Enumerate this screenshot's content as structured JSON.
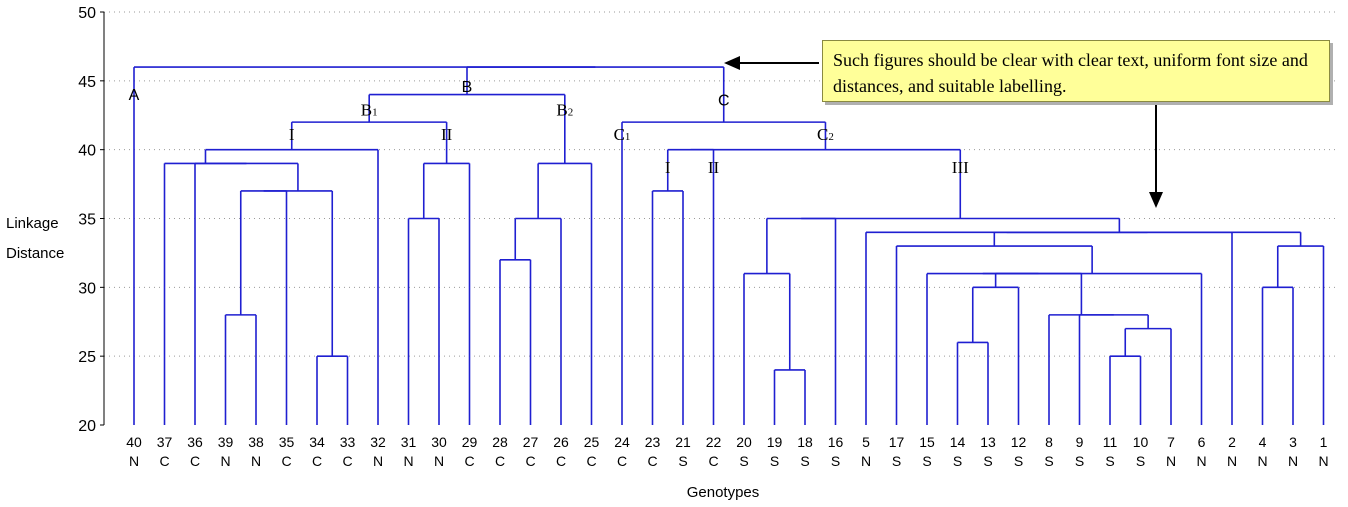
{
  "chart_data": {
    "type": "dendrogram",
    "title": "",
    "xlabel": "Genotypes",
    "ylabel_lines": [
      "Linkage",
      "Distance"
    ],
    "ylim": [
      20,
      50
    ],
    "yticks": [
      20,
      25,
      30,
      35,
      40,
      45,
      50
    ],
    "grid": "horizontal dotted",
    "line_color": "#1f1fd1",
    "leaves": [
      {
        "id": "40",
        "group": "N"
      },
      {
        "id": "37",
        "group": "C"
      },
      {
        "id": "36",
        "group": "C"
      },
      {
        "id": "39",
        "group": "N"
      },
      {
        "id": "38",
        "group": "N"
      },
      {
        "id": "35",
        "group": "C"
      },
      {
        "id": "34",
        "group": "C"
      },
      {
        "id": "33",
        "group": "C"
      },
      {
        "id": "32",
        "group": "N"
      },
      {
        "id": "31",
        "group": "N"
      },
      {
        "id": "30",
        "group": "N"
      },
      {
        "id": "29",
        "group": "C"
      },
      {
        "id": "28",
        "group": "C"
      },
      {
        "id": "27",
        "group": "C"
      },
      {
        "id": "26",
        "group": "C"
      },
      {
        "id": "25",
        "group": "C"
      },
      {
        "id": "24",
        "group": "C"
      },
      {
        "id": "23",
        "group": "C"
      },
      {
        "id": "21",
        "group": "S"
      },
      {
        "id": "22",
        "group": "C"
      },
      {
        "id": "20",
        "group": "S"
      },
      {
        "id": "19",
        "group": "S"
      },
      {
        "id": "18",
        "group": "S"
      },
      {
        "id": "16",
        "group": "S"
      },
      {
        "id": "5",
        "group": "N"
      },
      {
        "id": "17",
        "group": "S"
      },
      {
        "id": "15",
        "group": "S"
      },
      {
        "id": "14",
        "group": "S"
      },
      {
        "id": "13",
        "group": "S"
      },
      {
        "id": "12",
        "group": "S"
      },
      {
        "id": "8",
        "group": "S"
      },
      {
        "id": "9",
        "group": "S"
      },
      {
        "id": "11",
        "group": "S"
      },
      {
        "id": "10",
        "group": "S"
      },
      {
        "id": "7",
        "group": "N"
      },
      {
        "id": "6",
        "group": "N"
      },
      {
        "id": "2",
        "group": "N"
      },
      {
        "id": "4",
        "group": "N"
      },
      {
        "id": "3",
        "group": "N"
      },
      {
        "id": "1",
        "group": "N"
      }
    ],
    "merges": [
      {
        "id": "m1",
        "children": [
          3,
          4
        ],
        "height": 28
      },
      {
        "id": "m2",
        "children": [
          6,
          7
        ],
        "height": 25
      },
      {
        "id": "m3",
        "children": [
          "m1",
          5
        ],
        "height": 37
      },
      {
        "id": "m4",
        "children": [
          "m3",
          "m2"
        ],
        "height": 37
      },
      {
        "id": "m5",
        "children": [
          2,
          "m4"
        ],
        "height": 39
      },
      {
        "id": "m6",
        "children": [
          1,
          "m5"
        ],
        "height": 39
      },
      {
        "id": "m7",
        "children": [
          "m6",
          8
        ],
        "height": 40
      },
      {
        "id": "m8",
        "children": [
          9,
          10
        ],
        "height": 35
      },
      {
        "id": "m9",
        "children": [
          "m8",
          11
        ],
        "height": 39
      },
      {
        "id": "m10",
        "children": [
          "m7",
          "m9"
        ],
        "height": 42
      },
      {
        "id": "m11",
        "children": [
          12,
          13
        ],
        "height": 32
      },
      {
        "id": "m12",
        "children": [
          "m11",
          14
        ],
        "height": 35
      },
      {
        "id": "m13",
        "children": [
          "m12",
          15
        ],
        "height": 39
      },
      {
        "id": "m14",
        "children": [
          "m10",
          "m13"
        ],
        "height": 44
      },
      {
        "id": "m15",
        "children": [
          17,
          18
        ],
        "height": 37
      },
      {
        "id": "m16",
        "children": [
          21,
          22
        ],
        "height": 24
      },
      {
        "id": "m17",
        "children": [
          20,
          "m16"
        ],
        "height": 31
      },
      {
        "id": "m18",
        "children": [
          27,
          28
        ],
        "height": 26
      },
      {
        "id": "m19",
        "children": [
          "m18",
          29
        ],
        "height": 30
      },
      {
        "id": "m20",
        "children": [
          32,
          33
        ],
        "height": 25
      },
      {
        "id": "m21",
        "children": [
          "m20",
          34
        ],
        "height": 27
      },
      {
        "id": "m22",
        "children": [
          31,
          "m21"
        ],
        "height": 28
      },
      {
        "id": "m23",
        "children": [
          30,
          "m22"
        ],
        "height": 28
      },
      {
        "id": "m24",
        "children": [
          "m19",
          "m23"
        ],
        "height": 31
      },
      {
        "id": "m25",
        "children": [
          26,
          "m24"
        ],
        "height": 31
      },
      {
        "id": "m26",
        "children": [
          "m25",
          35
        ],
        "height": 31
      },
      {
        "id": "m27",
        "children": [
          25,
          "m26"
        ],
        "height": 33
      },
      {
        "id": "m28",
        "children": [
          37,
          38
        ],
        "height": 30
      },
      {
        "id": "m29",
        "children": [
          "m28",
          39
        ],
        "height": 33
      },
      {
        "id": "m30",
        "children": [
          "m27",
          "m29"
        ],
        "height": 34
      },
      {
        "id": "m31",
        "children": [
          24,
          "m30"
        ],
        "height": 34
      },
      {
        "id": "m32",
        "children": [
          "m31",
          36
        ],
        "height": 34
      },
      {
        "id": "m33",
        "children": [
          "m17",
          23
        ],
        "height": 35
      },
      {
        "id": "m34",
        "children": [
          "m33",
          "m32"
        ],
        "height": 35
      },
      {
        "id": "m35",
        "children": [
          "m15",
          19
        ],
        "height": 40
      },
      {
        "id": "m36",
        "children": [
          "m35",
          "m34"
        ],
        "height": 40
      },
      {
        "id": "m37",
        "children": [
          16,
          "m36"
        ],
        "height": 42
      },
      {
        "id": "m38",
        "children": [
          "m14",
          "m37"
        ],
        "height": 46
      },
      {
        "id": "m39",
        "children": [
          0,
          "m38"
        ],
        "height": 46
      }
    ],
    "cluster_labels": [
      {
        "text": "A",
        "node": 0,
        "height": 43.6,
        "style": "sans"
      },
      {
        "text": "B",
        "node": "m14",
        "height": 44.2,
        "style": "sans"
      },
      {
        "text": "C",
        "node": "m37",
        "height": 43.2,
        "style": "sans"
      },
      {
        "text": "B",
        "sub": "1",
        "node": "m10",
        "height": 42.5,
        "style": "serif"
      },
      {
        "text": "B",
        "sub": "2",
        "node": "m13",
        "height": 42.5,
        "style": "serif"
      },
      {
        "text": "C",
        "sub": "1",
        "node": 16,
        "height": 40.7,
        "style": "serif"
      },
      {
        "text": "C",
        "sub": "2",
        "node": "m36",
        "height": 40.7,
        "style": "serif"
      },
      {
        "text": "I",
        "node": "m7",
        "height": 40.7,
        "style": "serif"
      },
      {
        "text": "II",
        "node": "m9",
        "height": 40.7,
        "style": "serif"
      },
      {
        "text": "I",
        "node": "m15",
        "height": 38.3,
        "style": "serif"
      },
      {
        "text": "II",
        "node": 19,
        "height": 38.3,
        "style": "serif"
      },
      {
        "text": "III",
        "node": "m34",
        "height": 38.3,
        "style": "serif"
      }
    ],
    "annotation": "Such figures should be clear with clear text, uniform font size and distances, and suitable labelling."
  }
}
